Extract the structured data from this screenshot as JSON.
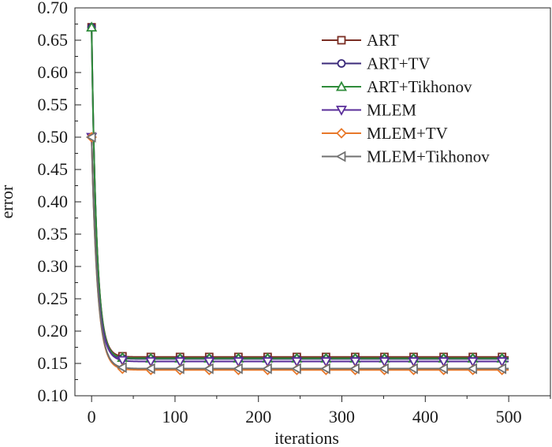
{
  "chart_data": {
    "type": "line",
    "title": "",
    "xlabel": "iterations",
    "ylabel": "error",
    "xlim": [
      -20,
      550
    ],
    "ylim": [
      0.1,
      0.7
    ],
    "xticks": [
      0,
      100,
      200,
      300,
      400,
      500
    ],
    "xtick_labels": [
      "0",
      "100",
      "200",
      "300",
      "400",
      "500"
    ],
    "yticks": [
      0.1,
      0.15,
      0.2,
      0.25,
      0.3,
      0.35,
      0.4,
      0.45,
      0.5,
      0.55,
      0.6,
      0.65,
      0.7
    ],
    "ytick_labels": [
      "0.10",
      "0.15",
      "0.20",
      "0.25",
      "0.30",
      "0.35",
      "0.40",
      "0.45",
      "0.50",
      "0.55",
      "0.60",
      "0.65",
      "0.70"
    ],
    "grid": false,
    "legend_position": "top-right",
    "marker_x": [
      0,
      37,
      71,
      106,
      141,
      176,
      211,
      246,
      281,
      316,
      351,
      386,
      422,
      457,
      492
    ],
    "series": [
      {
        "name": "ART",
        "color": "#7a2e24",
        "marker": "square",
        "start": 0.67,
        "final": 0.16,
        "decay": 6
      },
      {
        "name": "ART+TV",
        "color": "#3b2a7a",
        "marker": "circle",
        "start": 0.67,
        "final": 0.157,
        "decay": 6
      },
      {
        "name": "ART+Tikhonov",
        "color": "#2e8b3a",
        "marker": "triangle-up",
        "start": 0.67,
        "final": 0.158,
        "decay": 6
      },
      {
        "name": "MLEM",
        "color": "#5a2e9a",
        "marker": "triangle-down",
        "start": 0.5,
        "final": 0.153,
        "decay": 7
      },
      {
        "name": "MLEM+TV",
        "color": "#e8782a",
        "marker": "diamond",
        "start": 0.5,
        "final": 0.14,
        "decay": 7
      },
      {
        "name": "MLEM+Tikhonov",
        "color": "#707070",
        "marker": "triangle-left",
        "start": 0.5,
        "final": 0.142,
        "decay": 7
      }
    ]
  }
}
